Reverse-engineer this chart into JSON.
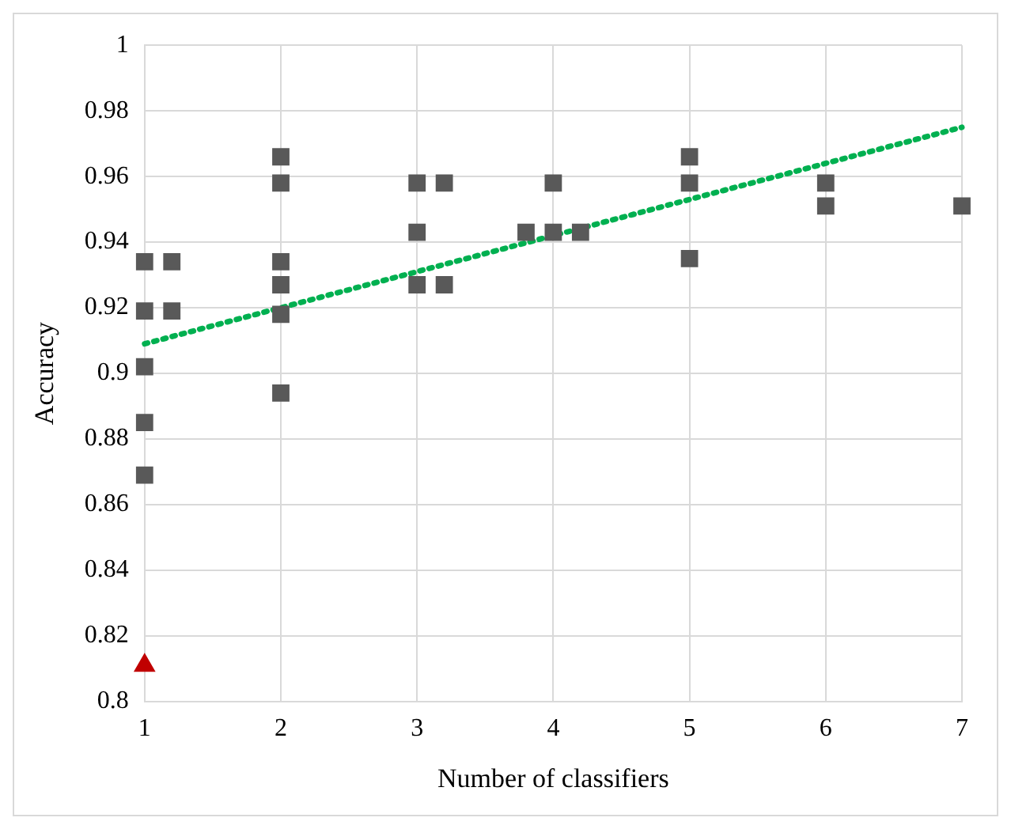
{
  "chart_data": {
    "type": "scatter",
    "xlabel": "Number of classifiers",
    "ylabel": "Accuracy",
    "xlim": [
      1,
      7
    ],
    "xticks": [
      1,
      2,
      3,
      4,
      5,
      6,
      7
    ],
    "ylim": [
      0.8,
      1
    ],
    "yticks": [
      0.8,
      0.82,
      0.84,
      0.86,
      0.88,
      0.9,
      0.92,
      0.94,
      0.96,
      0.98,
      1
    ],
    "grid": true,
    "series": [
      {
        "color": "#595959",
        "marker": "square",
        "x": [
          1,
          1,
          1,
          1,
          1,
          1.2,
          1.2,
          2,
          2,
          2,
          2,
          2,
          2,
          3,
          3,
          3,
          3.2,
          3.2,
          3.8,
          4,
          4,
          4.2,
          5,
          5,
          5,
          6,
          6,
          7
        ],
        "values": [
          0.934,
          0.919,
          0.902,
          0.885,
          0.869,
          0.934,
          0.919,
          0.966,
          0.958,
          0.934,
          0.927,
          0.918,
          0.894,
          0.958,
          0.943,
          0.927,
          0.958,
          0.927,
          0.943,
          0.958,
          0.943,
          0.943,
          0.966,
          0.958,
          0.935,
          0.958,
          0.951,
          0.951
        ]
      },
      {
        "color": "#c00000",
        "marker": "triangle",
        "x": [
          1
        ],
        "values": [
          0.811
        ]
      },
      {
        "type": "line",
        "color": "#00b050",
        "line_style": "dotted",
        "marker": "none",
        "x": [
          1,
          7
        ],
        "values": [
          0.909,
          0.975
        ]
      }
    ]
  }
}
